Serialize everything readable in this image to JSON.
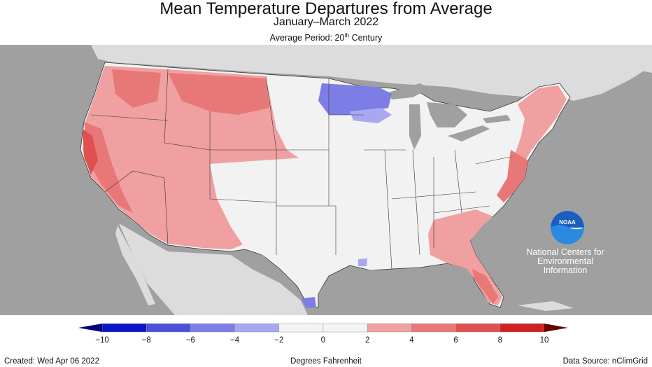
{
  "header": {
    "title": "Mean Temperature Departures from Average",
    "subtitle": "January–March 2022",
    "average_period_prefix": "Average Period: 20",
    "average_period_sup": "th",
    "average_period_suffix": " Century"
  },
  "map": {
    "background_color": "#a0a0a0",
    "land_color": "#dcdcdc",
    "base_color": "#f2f2f2"
  },
  "logo": {
    "emblem_text": "NOAA",
    "line1": "National Centers for",
    "line2": "Environmental",
    "line3": "Information"
  },
  "legend": {
    "ticks": [
      "−10",
      "−8",
      "−6",
      "−4",
      "−2",
      "0",
      "2",
      "4",
      "6",
      "8",
      "10"
    ],
    "colors": [
      "#0c14c8",
      "#4a50d8",
      "#7c7ee6",
      "#a8a8f0",
      "#f4f4f4",
      "#f4f4f4",
      "#f0a0a0",
      "#e87878",
      "#e05050",
      "#d02020"
    ],
    "unit_label": "Degrees Fahrenheit"
  },
  "footer": {
    "created": "Created: Wed Apr 06 2022",
    "source": "Data Source: nClimGrid"
  }
}
